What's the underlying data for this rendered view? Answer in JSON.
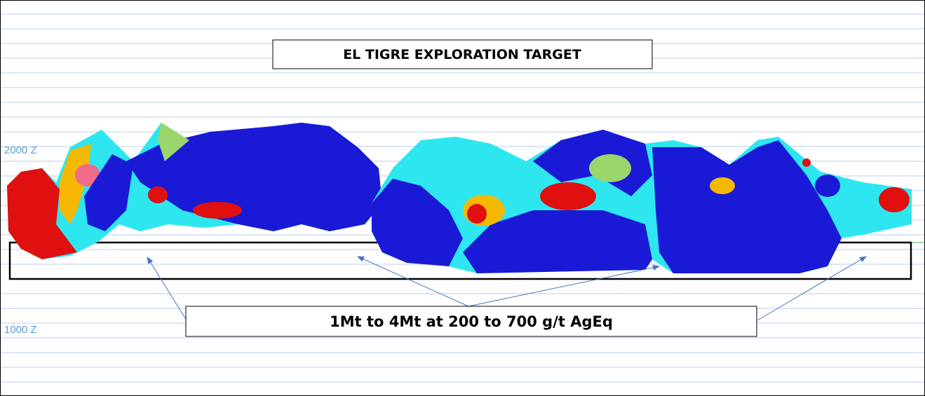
{
  "title": "EL TIGRE EXPLORATION TARGET",
  "elevation_labels": [
    "2000 Z",
    "1000 Z"
  ],
  "callout": "1Mt to 4Mt at 200 to 700 g/t AgEq"
}
